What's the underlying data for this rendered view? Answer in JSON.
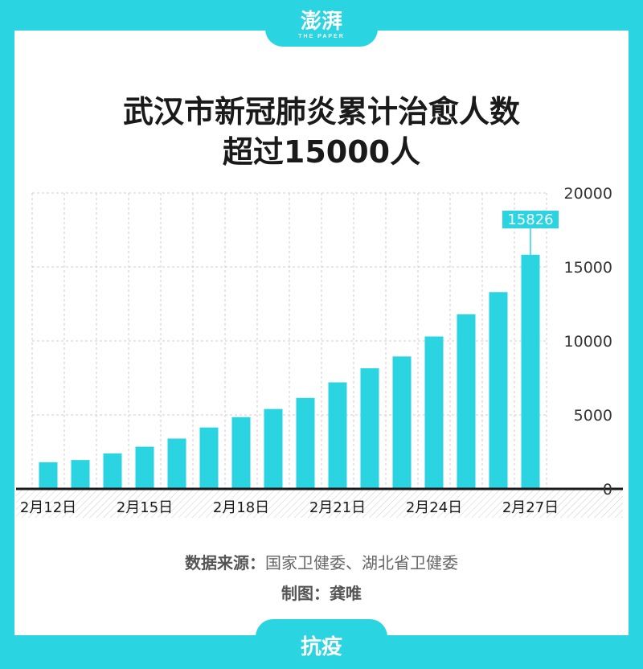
{
  "header": {
    "logo_text": "澎湃",
    "logo_sub": "THE PAPER"
  },
  "title_line1": "武汉市新冠肺炎累计治愈人数",
  "title_line2": "超过15000人",
  "source_label": "数据来源：",
  "source_text": "国家卫健委、湖北省卫健委",
  "author_label": "制图：",
  "author_text": "龚唯",
  "footer_label": "抗疫",
  "colors": {
    "accent": "#2ad4e0",
    "bar": "#2ad4e0",
    "text": "#1a1a1a"
  },
  "chart_data": {
    "type": "bar",
    "categories": [
      "2月12日",
      "2月13日",
      "2月14日",
      "2月15日",
      "2月16日",
      "2月17日",
      "2月18日",
      "2月19日",
      "2月20日",
      "2月21日",
      "2月22日",
      "2月23日",
      "2月24日",
      "2月25日",
      "2月26日",
      "2月27日"
    ],
    "x_tick_labels": [
      "2月12日",
      "",
      "",
      "2月15日",
      "",
      "",
      "2月18日",
      "",
      "",
      "2月21日",
      "",
      "",
      "2月24日",
      "",
      "",
      "2月27日"
    ],
    "values": [
      1800,
      1950,
      2400,
      2850,
      3400,
      4150,
      4850,
      5400,
      6150,
      7200,
      8150,
      8950,
      10300,
      11800,
      13300,
      15826
    ],
    "ylim": [
      0,
      20000
    ],
    "yticks": [
      0,
      5000,
      10000,
      15000,
      20000
    ],
    "y_axis_position": "right",
    "grid": true,
    "annotation": {
      "index": 15,
      "text": "15826"
    }
  }
}
